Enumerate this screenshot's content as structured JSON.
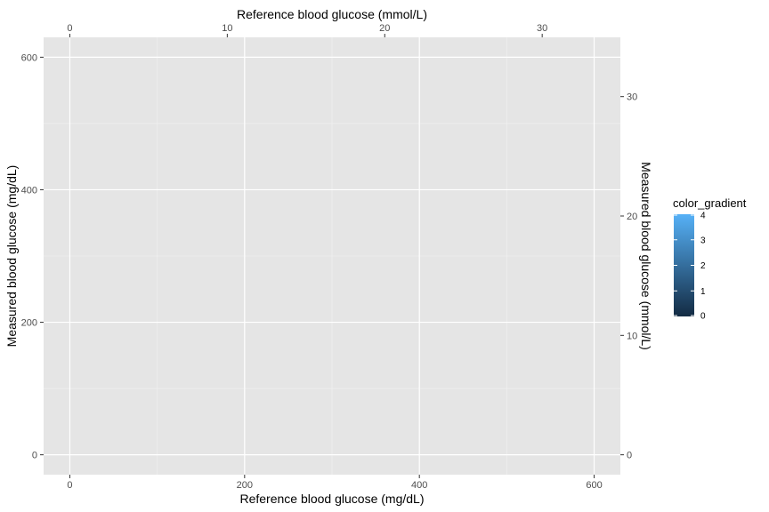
{
  "chart_data": {
    "type": "scatter",
    "series": [],
    "xlabel": "Reference blood glucose (mg/dL)",
    "ylabel": "Measured blood glucose (mg/dL)",
    "x2label": "Reference blood glucose (mmol/L)",
    "y2label": "Measured blood glucose (mmol/L)",
    "xlim": [
      -30,
      630
    ],
    "ylim": [
      -30,
      630
    ],
    "x2lim": [
      -1.665,
      34.965
    ],
    "y2lim": [
      -1.665,
      34.965
    ],
    "x_ticks": [
      0,
      200,
      400,
      600
    ],
    "y_ticks": [
      0,
      200,
      400,
      600
    ],
    "x2_ticks": [
      0,
      10,
      20,
      30
    ],
    "y2_ticks": [
      0,
      10,
      20,
      30
    ],
    "x_minor": [
      100,
      300,
      500
    ],
    "y_minor": [
      100,
      300,
      500
    ],
    "x_tick_labels": [
      "0",
      "200",
      "400",
      "600"
    ],
    "y_tick_labels": [
      "0",
      "200",
      "400",
      "600"
    ],
    "x2_tick_labels": [
      "0",
      "10",
      "20",
      "30"
    ],
    "y2_tick_labels": [
      "0",
      "10",
      "20",
      "30"
    ],
    "grid": true,
    "panel_background": "#e5e5e5",
    "legend": {
      "title": "color_gradient",
      "placement": "right",
      "range": [
        0,
        4
      ],
      "breaks": [
        0,
        1,
        2,
        3,
        4
      ],
      "labels": [
        "0",
        "1",
        "2",
        "3",
        "4"
      ],
      "color_low": "#132b43",
      "color_high": "#56b1f7"
    }
  }
}
